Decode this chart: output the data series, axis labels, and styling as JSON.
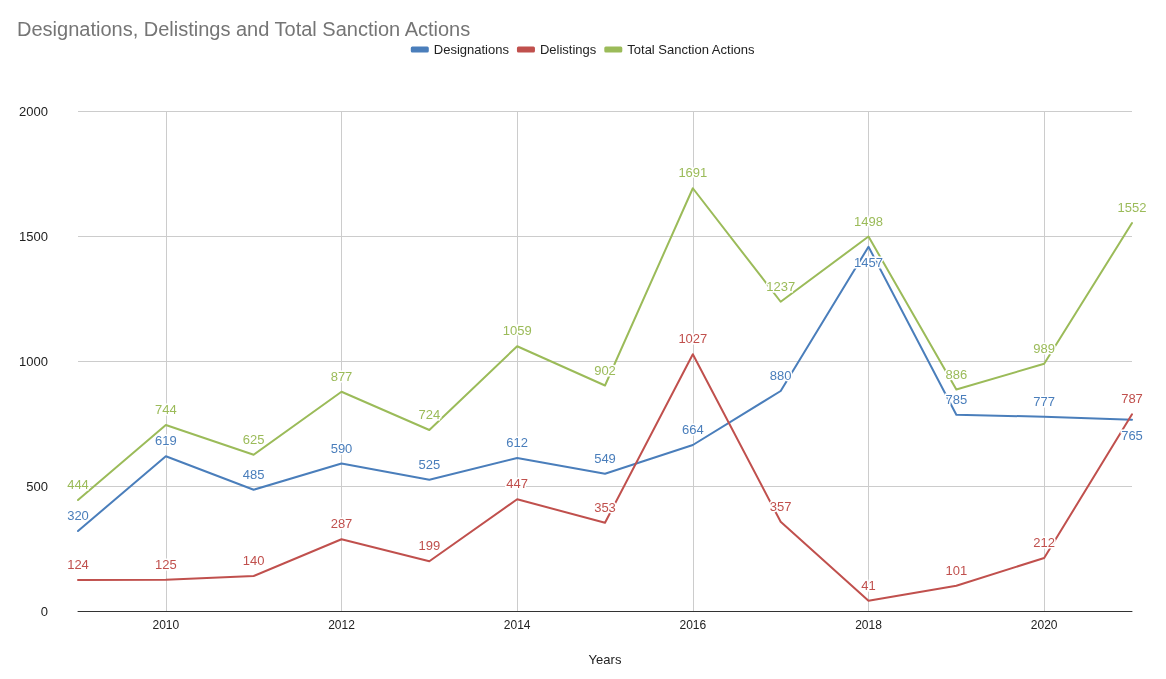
{
  "chart_data": {
    "type": "line",
    "title": "Designations, Delistings and Total Sanction Actions",
    "xlabel": "Years",
    "x": [
      2009,
      2010,
      2011,
      2012,
      2013,
      2014,
      2015,
      2016,
      2017,
      2018,
      2019,
      2020,
      2021
    ],
    "series": [
      {
        "name": "Designations",
        "color": "#4a7ebb",
        "values": [
          320,
          619,
          485,
          590,
          525,
          612,
          549,
          664,
          880,
          1457,
          785,
          777,
          765
        ]
      },
      {
        "name": "Delistings",
        "color": "#c0504d",
        "values": [
          124,
          125,
          140,
          287,
          199,
          447,
          353,
          1027,
          357,
          41,
          101,
          212,
          787
        ]
      },
      {
        "name": "Total Sanction Actions",
        "color": "#9bbb59",
        "values": [
          444,
          744,
          625,
          877,
          724,
          1059,
          902,
          1691,
          1237,
          1498,
          886,
          989,
          1552
        ]
      }
    ],
    "xlim": [
      2009,
      2021
    ],
    "xticks": [
      2010,
      2012,
      2014,
      2016,
      2018,
      2020
    ],
    "ylim": [
      0,
      2000
    ],
    "yticks": [
      0,
      500,
      1000,
      1500,
      2000
    ],
    "grid": true,
    "legend": "top",
    "data_labels": true,
    "marker": "none",
    "line_style": "solid"
  }
}
